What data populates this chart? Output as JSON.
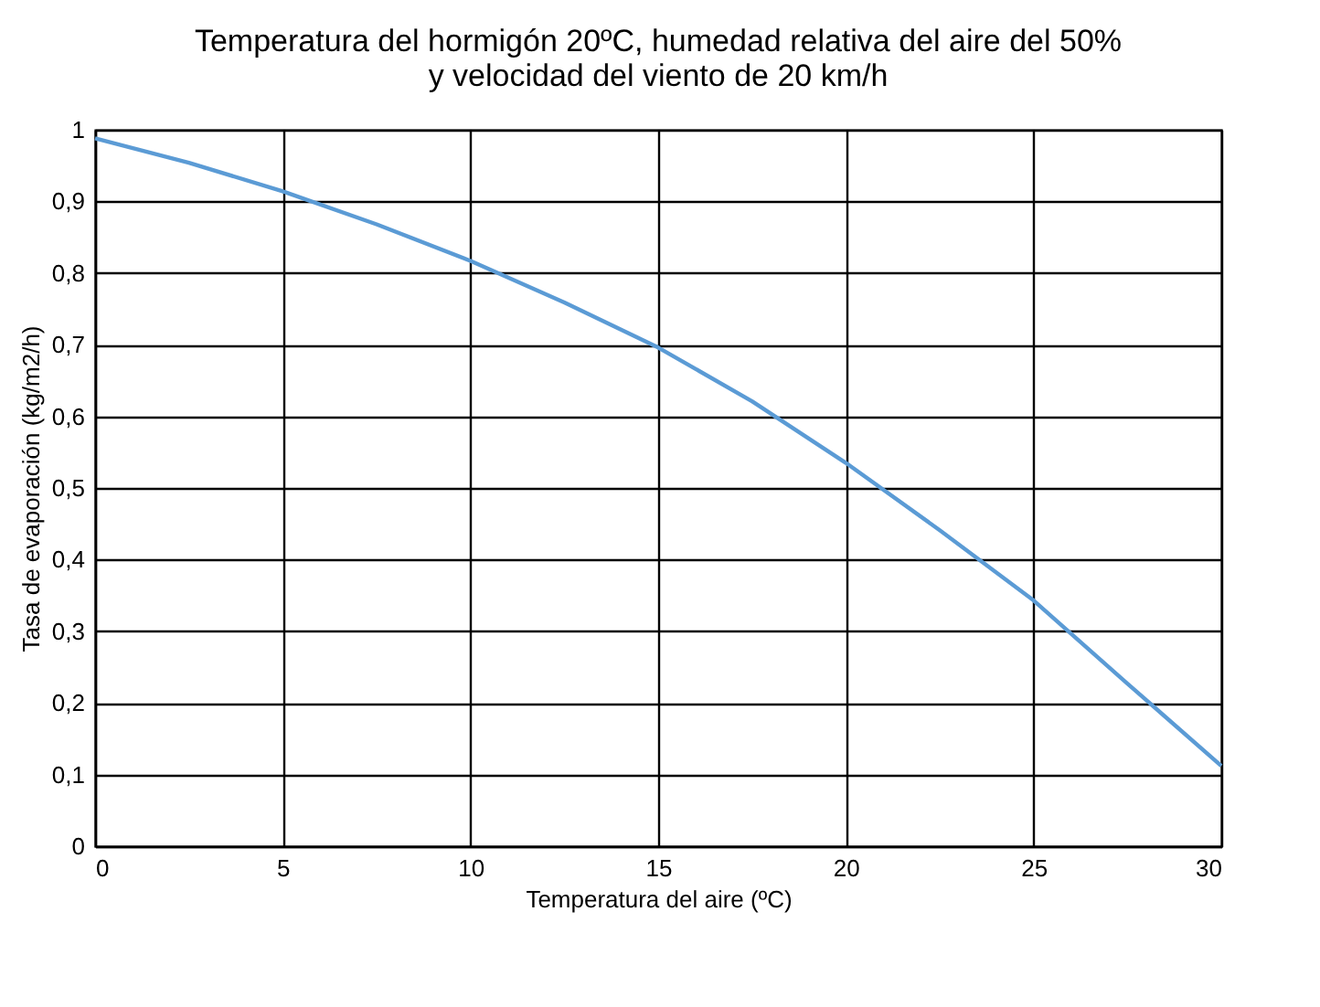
{
  "chart_data": {
    "type": "line",
    "title": "Temperatura del hormigón 20ºC, humedad relativa del aire del 50%\ny velocidad del viento de 20 km/h",
    "xlabel": "Temperatura del aire (ºC)",
    "ylabel": "Tasa de evaporación (kg/m2/h)",
    "x": [
      0,
      2.5,
      5,
      7.5,
      10,
      12.5,
      15,
      17.5,
      20,
      22.5,
      25,
      27.5,
      30
    ],
    "series": [
      {
        "color": "#5b9bd5",
        "values": [
          0.988,
          0.954,
          0.914,
          0.868,
          0.817,
          0.759,
          0.696,
          0.621,
          0.535,
          0.441,
          0.343,
          0.227,
          0.112
        ]
      }
    ],
    "xlim": [
      0,
      30
    ],
    "xticks": [
      0,
      5,
      10,
      15,
      20,
      25,
      30
    ],
    "ylim": [
      0,
      1
    ],
    "yticks": [
      0,
      {
        "value": 0.1,
        "label": "0,1"
      },
      {
        "value": 0.2,
        "label": "0,2"
      },
      {
        "value": 0.3,
        "label": "0,3"
      },
      {
        "value": 0.4,
        "label": "0,4"
      },
      {
        "value": 0.5,
        "label": "0,5"
      },
      {
        "value": 0.6,
        "label": "0,6"
      },
      {
        "value": 0.7,
        "label": "0,7"
      },
      {
        "value": 0.8,
        "label": "0,8"
      },
      {
        "value": 0.9,
        "label": "0,9"
      },
      1
    ],
    "grid": true,
    "legend": false
  }
}
